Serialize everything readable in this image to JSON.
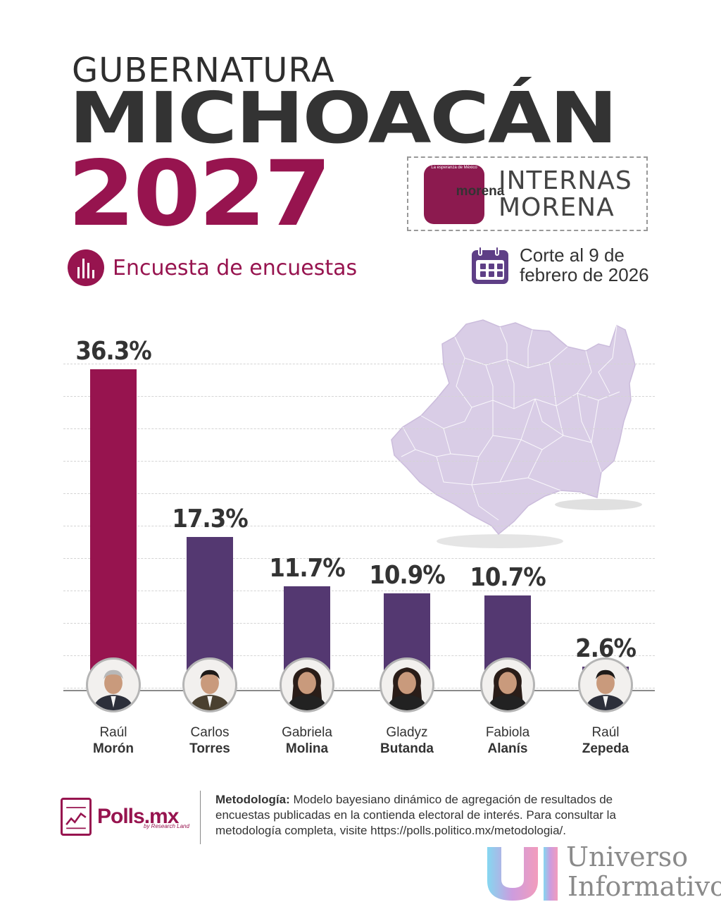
{
  "header": {
    "line1": "GUBERNATURA",
    "line2": "MICHOACÁN",
    "line3": "2027"
  },
  "badge": {
    "logo_name": "morena",
    "logo_sub": "La esperanza de México",
    "line1": "INTERNAS",
    "line2": "MORENA"
  },
  "subtitle": "Encuesta de encuestas",
  "cut": {
    "line1": "Corte al 9 de",
    "line2": "febrero de 2026"
  },
  "colors": {
    "accent": "#97144f",
    "purple": "#5e3f86",
    "map": "#d9cde6"
  },
  "chart_data": {
    "type": "bar",
    "categories": [
      "Raúl Morón",
      "Carlos Torres",
      "Gabriela Molina",
      "Gladyz Butanda",
      "Fabiola Alanís",
      "Raúl Zepeda"
    ],
    "values": [
      36.3,
      17.3,
      11.7,
      10.9,
      10.7,
      2.6
    ],
    "value_labels": [
      "36.3%",
      "17.3%",
      "11.7%",
      "10.9%",
      "10.7%",
      "2.6%"
    ],
    "first_names": [
      "Raúl",
      "Carlos",
      "Gabriela",
      "Gladyz",
      "Fabiola",
      "Raúl"
    ],
    "last_names": [
      "Morón",
      "Torres",
      "Molina",
      "Butanda",
      "Alanís",
      "Zepeda"
    ],
    "bar_colors": [
      "#97144f",
      "#543871",
      "#543871",
      "#543871",
      "#543871",
      "#543871"
    ],
    "unit": "%",
    "ylim": [
      0,
      36.3
    ],
    "grid": true
  },
  "footer": {
    "brand": "Polls.mx",
    "brand_sub": "by Research Land",
    "method_label": "Metodología:",
    "method_text": " Modelo bayesiano dinámico de agregación de resultados de encuestas publicadas en la contienda electoral de interés. Para consultar la metodología completa, visite https://polls.politico.mx/metodologia/."
  },
  "watermark": {
    "line1": "Universo",
    "line2": "Informativo"
  }
}
